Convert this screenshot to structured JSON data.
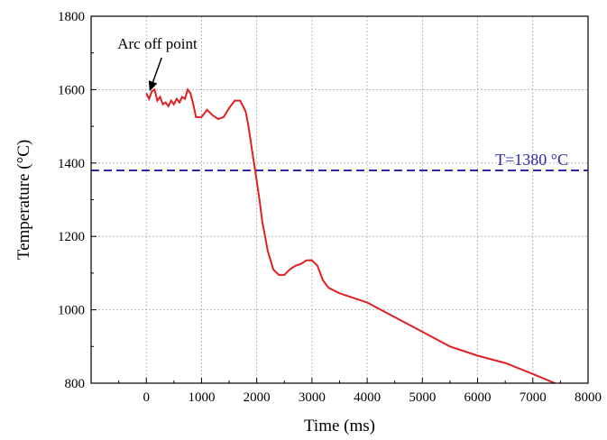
{
  "chart_data": {
    "type": "line",
    "xlabel": "Time (ms)",
    "ylabel": "Temperature (°C)",
    "xlim": [
      -1000,
      8000
    ],
    "ylim": [
      800,
      1800
    ],
    "xticks": [
      0,
      1000,
      2000,
      3000,
      4000,
      5000,
      6000,
      7000,
      8000
    ],
    "yticks": [
      800,
      1000,
      1200,
      1400,
      1600,
      1800
    ],
    "grid": true,
    "series": [
      {
        "color": "#e02020",
        "x": [
          0,
          50,
          100,
          150,
          200,
          250,
          300,
          350,
          400,
          450,
          500,
          550,
          600,
          650,
          700,
          750,
          800,
          850,
          900,
          1000,
          1100,
          1200,
          1300,
          1400,
          1500,
          1600,
          1700,
          1800,
          1850,
          1900,
          1950,
          2000,
          2050,
          2100,
          2150,
          2200,
          2300,
          2400,
          2500,
          2600,
          2700,
          2800,
          2900,
          3000,
          3100,
          3200,
          3300,
          3500,
          3800,
          4000,
          4500,
          5000,
          5500,
          6000,
          6500,
          7000,
          7400
        ],
        "y": [
          1590,
          1575,
          1595,
          1600,
          1570,
          1580,
          1560,
          1565,
          1555,
          1570,
          1560,
          1575,
          1565,
          1580,
          1575,
          1600,
          1590,
          1560,
          1525,
          1525,
          1545,
          1530,
          1520,
          1525,
          1550,
          1570,
          1570,
          1540,
          1500,
          1450,
          1400,
          1350,
          1300,
          1240,
          1200,
          1160,
          1110,
          1095,
          1095,
          1110,
          1120,
          1125,
          1135,
          1135,
          1120,
          1080,
          1060,
          1045,
          1030,
          1020,
          980,
          940,
          900,
          875,
          855,
          825,
          800
        ]
      }
    ],
    "reference_line": {
      "y": 1380,
      "label": "T=1380 °C",
      "color": "#2a2aaa"
    },
    "annotation": {
      "text": "Arc off point",
      "x": 0,
      "y": 1590
    }
  }
}
